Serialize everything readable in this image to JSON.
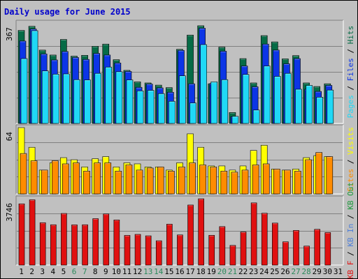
{
  "chart_data": {
    "type": "bar",
    "title": "Daily usage for June 2015",
    "colors": {
      "title": "#0000cc",
      "background": "#c0c0c0",
      "grid": "#808080",
      "hits": "#066b46",
      "files": "#0c35e6",
      "pages": "#20d8f6",
      "visits": "#ffff00",
      "sites": "#ff8c00",
      "kb": "#e01010",
      "weekend": "#2c8a5c",
      "weekday": "#000000"
    },
    "days": [
      "1",
      "2",
      "3",
      "4",
      "5",
      "6",
      "7",
      "8",
      "9",
      "10",
      "11",
      "12",
      "13",
      "14",
      "15",
      "16",
      "17",
      "18",
      "19",
      "20",
      "21",
      "22",
      "23",
      "24",
      "25",
      "26",
      "27",
      "28",
      "29",
      "30",
      "31"
    ],
    "weekend_days": [
      "6",
      "7",
      "13",
      "14",
      "20",
      "21",
      "27",
      "28"
    ],
    "panels": [
      {
        "id": "hits-files-pages",
        "max_label": "367",
        "ylim": [
          0,
          367
        ],
        "legend": [
          "Pages",
          "Files",
          "Hits"
        ],
        "series": [
          {
            "name": "Hits",
            "color_key": "hits",
            "values": [
              340,
              355,
              268,
              250,
              307,
              246,
              249,
              282,
              290,
              233,
              194,
              152,
              148,
              140,
              131,
              271,
              323,
              357,
              145,
              279,
              40,
              237,
              148,
              321,
              298,
              236,
              248,
              148,
              135,
              145,
              0
            ]
          },
          {
            "name": "Files",
            "color_key": "files",
            "values": [
              301,
              345,
              254,
              232,
              263,
              241,
              234,
              256,
              250,
              221,
              190,
              132,
              144,
              130,
              114,
              267,
              145,
              348,
              146,
              264,
              25,
              210,
              134,
              290,
              268,
              218,
              237,
              125,
              117,
              139,
              0
            ]
          },
          {
            "name": "Pages",
            "color_key": "pages",
            "values": [
              237,
              339,
              192,
              180,
              181,
              160,
              159,
              183,
              206,
              189,
              159,
              119,
              121,
              109,
              81,
              174,
              75,
              288,
              152,
              160,
              26,
              179,
              49,
              210,
              172,
              183,
              125,
              139,
              96,
              122,
              0
            ]
          }
        ]
      },
      {
        "id": "visits-sites",
        "max_label": "64",
        "ylim": [
          0,
          64
        ],
        "legend": [
          "Sites",
          "Visits"
        ],
        "series": [
          {
            "name": "Visits",
            "color_key": "visits",
            "values": [
              64,
              45,
              23,
              30,
              35,
              33,
              26,
              34,
              36,
              26,
              30,
              29,
              26,
              26,
              23,
              30,
              58,
              45,
              27,
              27,
              23,
              27,
              42,
              47,
              24,
              23,
              24,
              35,
              37,
              36,
              0
            ]
          },
          {
            "name": "Sites",
            "color_key": "sites",
            "values": [
              39,
              32,
              23,
              32,
              29,
              30,
              22,
              30,
              30,
              22,
              28,
              23,
              25,
              26,
              22,
              26,
              30,
              28,
              26,
              22,
              21,
              23,
              28,
              29,
              24,
              23,
              22,
              33,
              40,
              36,
              0
            ]
          }
        ]
      },
      {
        "id": "kbytes",
        "max_label": "3746",
        "ylim": [
          0,
          3746
        ],
        "legend": [
          "KB F",
          "KB In",
          "KB Out"
        ],
        "series": [
          {
            "name": "KB F",
            "color_key": "kb",
            "values": [
              3460,
              3688,
              2395,
              2279,
              2917,
              2273,
              2279,
              2623,
              2889,
              2550,
              1677,
              1735,
              1653,
              1373,
              2312,
              1704,
              3394,
              3746,
              1682,
              2175,
              1111,
              1873,
              3516,
              2930,
              2373,
              1315,
              1959,
              1073,
              2020,
              1837,
              0
            ]
          }
        ]
      }
    ]
  }
}
